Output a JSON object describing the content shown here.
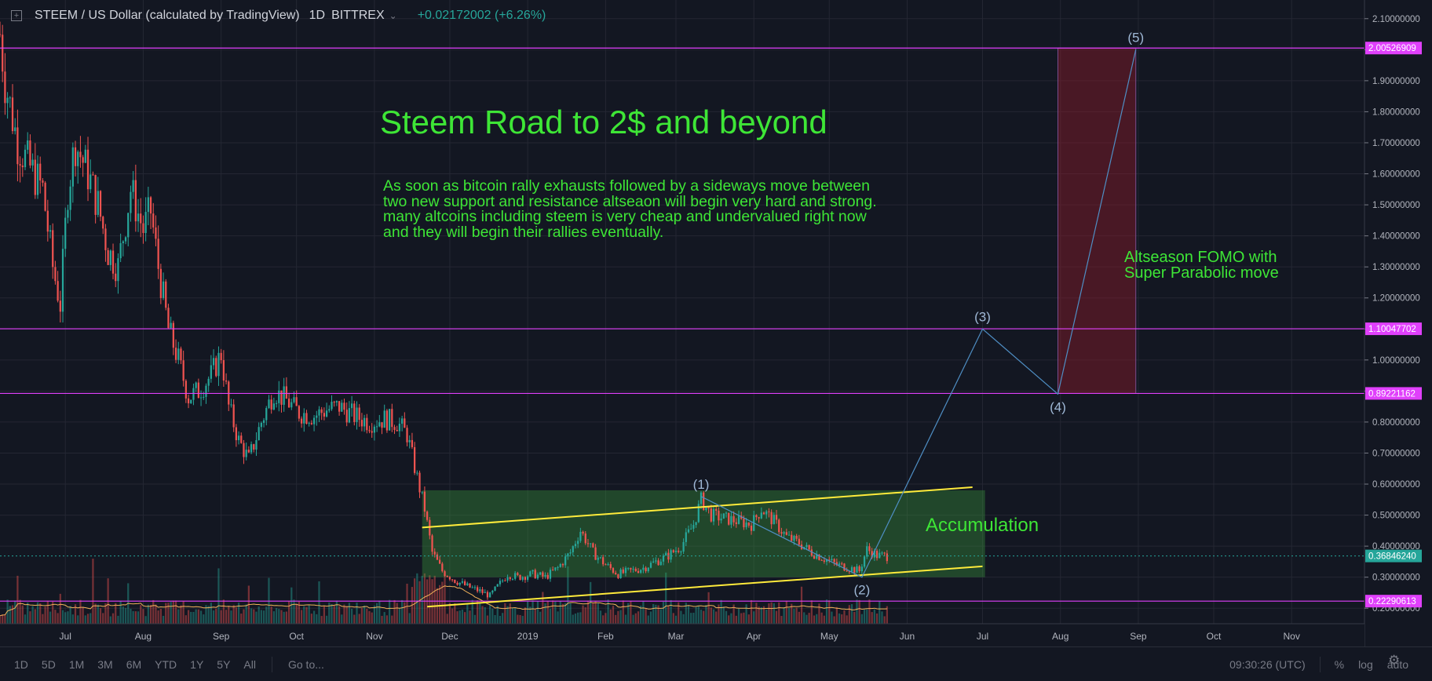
{
  "header": {
    "symbol": "STEEM / US Dollar (calculated by TradingView)",
    "interval": "1D",
    "exchange": "BITTREX",
    "change": "+0.02172002 (+6.26%)"
  },
  "annotations": {
    "title": "Steem Road to 2$ and beyond",
    "note": "As soon as bitcoin rally exhausts followed by a sideways move between two new support and resistance altseaon will begin very hard and strong. many altcoins including steem is very cheap and undervalued right now and they will begin their rallies eventually.",
    "altseason": "Altseason FOMO  with\nSuper Parabolic move",
    "accumulation": "Accumulation"
  },
  "bottom_bar": {
    "ranges": [
      "1D",
      "5D",
      "1M",
      "3M",
      "6M",
      "YTD",
      "1Y",
      "5Y",
      "All"
    ],
    "goto": "Go to...",
    "time": "09:30:26 (UTC)",
    "percent": "%",
    "log": "log",
    "auto": "auto"
  },
  "colors": {
    "background": "#131722",
    "up": "#26a69a",
    "down": "#ef5350",
    "level_line": "#e040fb",
    "annotation_text": "#3ee636",
    "channel_line": "#ffeb3b",
    "wave_line": "#4f8fc5",
    "target_box": "#8b1a2b"
  },
  "chart_data": {
    "type": "candlestick",
    "title": "STEEM / US Dollar (calculated by TradingView)",
    "interval": "1D",
    "x_tick_labels": [
      "Jul",
      "Aug",
      "Sep",
      "Oct",
      "Nov",
      "Dec",
      "2019",
      "Feb",
      "Mar",
      "Apr",
      "May",
      "Jun",
      "Jul",
      "Aug",
      "Sep",
      "Oct",
      "Nov"
    ],
    "x_range": [
      "2018-06-05",
      "2019-11-30"
    ],
    "y_ticks": [
      0.2,
      0.3,
      0.4,
      0.5,
      0.6,
      0.7,
      0.8,
      0.9,
      1.0,
      1.1,
      1.2,
      1.3,
      1.4,
      1.5,
      1.6,
      1.7,
      1.8,
      1.9,
      2.0,
      2.1
    ],
    "y_tick_labels": [
      "0.20000000",
      "0.30000000",
      "0.40000000",
      "0.50000000",
      "0.60000000",
      "0.70000000",
      "0.80000000",
      "0.90000000",
      "1.00000000",
      "1.10000000",
      "1.20000000",
      "1.30000000",
      "1.40000000",
      "1.50000000",
      "1.60000000",
      "1.70000000",
      "1.80000000",
      "1.90000000",
      "2.00000000",
      "2.10000000"
    ],
    "ylim": [
      0.15,
      2.15
    ],
    "price_levels": [
      {
        "value": 2.00526909,
        "label": "2.00526909"
      },
      {
        "value": 1.10047702,
        "label": "1.10047702"
      },
      {
        "value": 0.89221162,
        "label": "0.89221162"
      },
      {
        "value": 0.22290613,
        "label": "0.22290613"
      }
    ],
    "last_price": {
      "value": 0.3684624,
      "label": "0.36846240"
    },
    "price_path": [
      [
        "2018-06-05",
        2.05
      ],
      [
        "2018-06-07",
        1.9
      ],
      [
        "2018-06-12",
        1.7
      ],
      [
        "2018-06-17",
        1.62
      ],
      [
        "2018-06-22",
        1.55
      ],
      [
        "2018-06-26",
        1.3
      ],
      [
        "2018-06-29",
        1.18
      ],
      [
        "2018-07-02",
        1.55
      ],
      [
        "2018-07-05",
        1.7
      ],
      [
        "2018-07-10",
        1.6
      ],
      [
        "2018-07-14",
        1.5
      ],
      [
        "2018-07-18",
        1.35
      ],
      [
        "2018-07-22",
        1.3
      ],
      [
        "2018-07-27",
        1.55
      ],
      [
        "2018-08-01",
        1.42
      ],
      [
        "2018-08-04",
        1.48
      ],
      [
        "2018-08-07",
        1.3
      ],
      [
        "2018-08-11",
        1.1
      ],
      [
        "2018-08-15",
        1.0
      ],
      [
        "2018-08-19",
        0.88
      ],
      [
        "2018-08-23",
        0.9
      ],
      [
        "2018-08-28",
        0.95
      ],
      [
        "2018-09-01",
        1.02
      ],
      [
        "2018-09-04",
        0.85
      ],
      [
        "2018-09-08",
        0.74
      ],
      [
        "2018-09-12",
        0.68
      ],
      [
        "2018-09-17",
        0.8
      ],
      [
        "2018-09-22",
        0.9
      ],
      [
        "2018-09-27",
        0.87
      ],
      [
        "2018-10-02",
        0.83
      ],
      [
        "2018-10-08",
        0.82
      ],
      [
        "2018-10-13",
        0.84
      ],
      [
        "2018-10-18",
        0.85
      ],
      [
        "2018-10-24",
        0.82
      ],
      [
        "2018-10-30",
        0.8
      ],
      [
        "2018-11-05",
        0.81
      ],
      [
        "2018-11-10",
        0.8
      ],
      [
        "2018-11-14",
        0.76
      ],
      [
        "2018-11-18",
        0.62
      ],
      [
        "2018-11-21",
        0.52
      ],
      [
        "2018-11-24",
        0.38
      ],
      [
        "2018-11-28",
        0.32
      ],
      [
        "2018-12-03",
        0.29
      ],
      [
        "2018-12-08",
        0.27
      ],
      [
        "2018-12-13",
        0.255
      ],
      [
        "2018-12-17",
        0.24
      ],
      [
        "2018-12-20",
        0.27
      ],
      [
        "2018-12-24",
        0.31
      ],
      [
        "2018-12-28",
        0.3
      ],
      [
        "2019-01-03",
        0.31
      ],
      [
        "2019-01-08",
        0.3
      ],
      [
        "2019-01-13",
        0.33
      ],
      [
        "2019-01-18",
        0.38
      ],
      [
        "2019-01-22",
        0.45
      ],
      [
        "2019-01-27",
        0.38
      ],
      [
        "2019-02-01",
        0.34
      ],
      [
        "2019-02-06",
        0.31
      ],
      [
        "2019-02-11",
        0.32
      ],
      [
        "2019-02-16",
        0.33
      ],
      [
        "2019-02-21",
        0.35
      ],
      [
        "2019-02-26",
        0.37
      ],
      [
        "2019-03-03",
        0.4
      ],
      [
        "2019-03-08",
        0.47
      ],
      [
        "2019-03-11",
        0.55
      ],
      [
        "2019-03-15",
        0.5
      ],
      [
        "2019-03-20",
        0.49
      ],
      [
        "2019-03-26",
        0.48
      ],
      [
        "2019-03-31",
        0.47
      ],
      [
        "2019-04-04",
        0.52
      ],
      [
        "2019-04-09",
        0.48
      ],
      [
        "2019-04-14",
        0.43
      ],
      [
        "2019-04-19",
        0.41
      ],
      [
        "2019-04-24",
        0.38
      ],
      [
        "2019-04-29",
        0.36
      ],
      [
        "2019-05-04",
        0.34
      ],
      [
        "2019-05-09",
        0.33
      ],
      [
        "2019-05-13",
        0.32
      ],
      [
        "2019-05-16",
        0.39
      ],
      [
        "2019-05-20",
        0.37
      ],
      [
        "2019-05-24",
        0.368
      ]
    ],
    "channel": {
      "upper": [
        [
          "2018-11-20",
          0.46
        ],
        [
          "2019-06-27",
          0.59
        ]
      ],
      "lower": [
        [
          "2018-11-22",
          0.205
        ],
        [
          "2019-07-01",
          0.335
        ]
      ]
    },
    "accumulation_zone": {
      "x_start": "2018-11-20",
      "x_end": "2019-07-02",
      "y_low": 0.3,
      "y_high": 0.58
    },
    "wave_projection": [
      {
        "label": "(1)",
        "date": "2019-03-11",
        "price": 0.56
      },
      {
        "label": "(2)",
        "date": "2019-05-14",
        "price": 0.3
      },
      {
        "label": "(3)",
        "date": "2019-07-01",
        "price": 1.1
      },
      {
        "label": "(4)",
        "date": "2019-07-31",
        "price": 0.89
      },
      {
        "label": "(5)",
        "date": "2019-08-31",
        "price": 2.0
      }
    ],
    "target_box": {
      "x_start": "2019-07-31",
      "x_end": "2019-08-31",
      "y_low": 0.89221162,
      "y_high": 2.00526909
    },
    "volume_visible": true,
    "moving_average_visible": true
  }
}
